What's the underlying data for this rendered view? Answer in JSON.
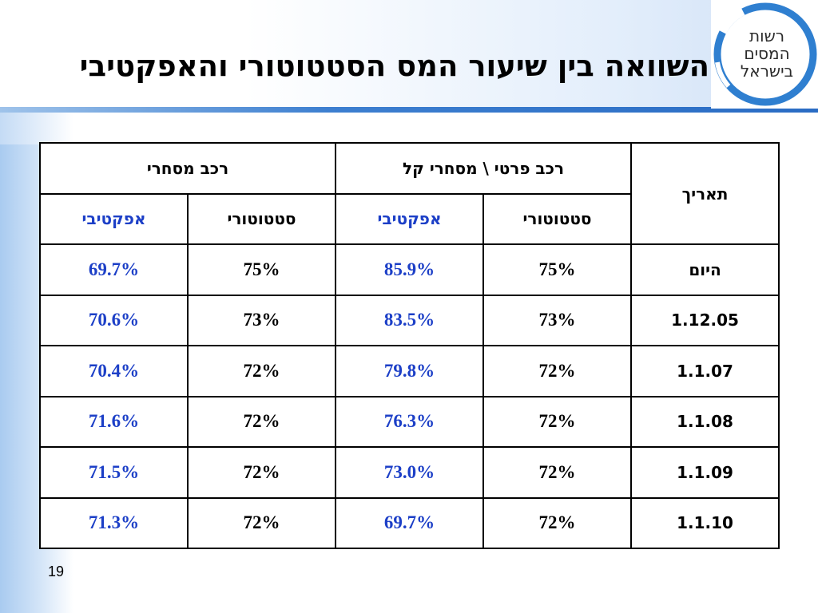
{
  "title": "השוואה בין שיעור המס הסטטוטורי והאפקטיבי",
  "logo": {
    "lines": [
      "רשות",
      "המסים",
      "בישראל"
    ]
  },
  "table": {
    "date_header": "תאריך",
    "groups": [
      "רכב פרטי \\ מסחרי קל",
      "רכב מסחרי"
    ],
    "subheaders": [
      "סטטוטורי",
      "אפקטיבי",
      "סטטוטורי",
      "אפקטיבי"
    ],
    "rows": [
      {
        "date": "היום",
        "private_stat": "75%",
        "private_eff": "85.9%",
        "comm_stat": "75%",
        "comm_eff": "69.7%"
      },
      {
        "date": "1.12.05",
        "private_stat": "73%",
        "private_eff": "83.5%",
        "comm_stat": "73%",
        "comm_eff": "70.6%"
      },
      {
        "date": "1.1.07",
        "private_stat": "72%",
        "private_eff": "79.8%",
        "comm_stat": "72%",
        "comm_eff": "70.4%"
      },
      {
        "date": "1.1.08",
        "private_stat": "72%",
        "private_eff": "76.3%",
        "comm_stat": "72%",
        "comm_eff": "71.6%"
      },
      {
        "date": "1.1.09",
        "private_stat": "72%",
        "private_eff": "73.0%",
        "comm_stat": "72%",
        "comm_eff": "71.5%"
      },
      {
        "date": "1.1.10",
        "private_stat": "72%",
        "private_eff": "69.7%",
        "comm_stat": "72%",
        "comm_eff": "71.3%"
      }
    ]
  },
  "page_number": "19",
  "colors": {
    "effective": "#1c3fc7",
    "accent_line": "#2a6cc4",
    "logo_ring": "#2f7fd0"
  }
}
